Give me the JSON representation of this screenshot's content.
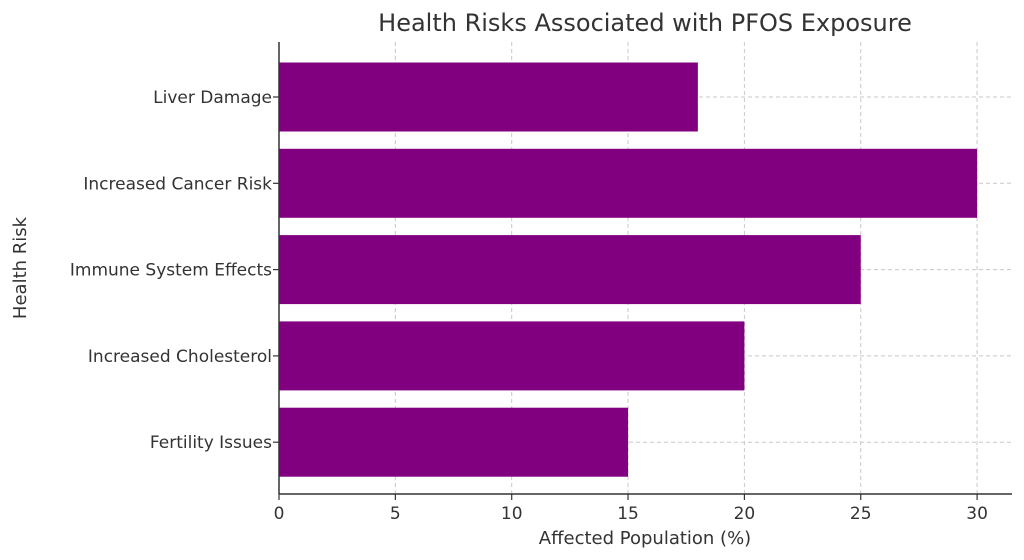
{
  "chart_data": {
    "type": "bar",
    "orientation": "horizontal",
    "title": "Health Risks Associated with PFOS Exposure",
    "xlabel": "Affected Population (%)",
    "ylabel": "Health Risk",
    "categories": [
      "Liver Damage",
      "Increased Cancer Risk",
      "Immune System Effects",
      "Increased Cholesterol",
      "Fertility Issues"
    ],
    "values": [
      18,
      30,
      25,
      20,
      15
    ],
    "xlim": [
      0,
      31.5
    ],
    "xticks": [
      0,
      5,
      10,
      15,
      20,
      25,
      30
    ],
    "grid": true,
    "bar_color": "#800080"
  }
}
